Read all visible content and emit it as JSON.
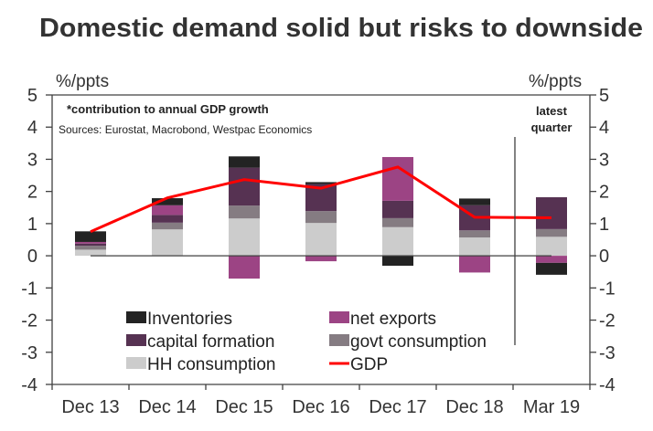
{
  "chart_data": {
    "type": "bar",
    "stacked": true,
    "title": "Domestic demand solid but risks to downside",
    "ylabel_left": "%/ppts",
    "ylabel_right": "%/ppts",
    "xlabel": "",
    "ylim": [
      -4,
      5
    ],
    "yticks": [
      5,
      4,
      3,
      2,
      1,
      0,
      -1,
      -2,
      -3,
      -4
    ],
    "ytick_labels": [
      "5",
      "4",
      "3",
      "2",
      "1",
      "0",
      "-1",
      "-2",
      "-3",
      "-4"
    ],
    "categories": [
      "Dec 13",
      "Dec 14",
      "Dec 15",
      "Dec 16",
      "Dec 17",
      "Dec 18",
      "Mar 19"
    ],
    "grid": false,
    "series": [
      {
        "name": "HH consumption",
        "type": "bar",
        "color": "#cccccc",
        "values": [
          0.19,
          0.82,
          1.16,
          1.02,
          0.89,
          0.57,
          0.59
        ]
      },
      {
        "name": "govt consumption",
        "type": "bar",
        "color": "#857c82",
        "values": [
          0.12,
          0.21,
          0.4,
          0.37,
          0.28,
          0.22,
          0.24
        ]
      },
      {
        "name": "capital formation",
        "type": "bar",
        "color": "#563252",
        "values": [
          0.07,
          0.24,
          1.18,
          0.84,
          0.54,
          0.78,
          0.99
        ]
      },
      {
        "name": "net exports",
        "type": "bar",
        "color": "#9c4484",
        "values": [
          0.05,
          0.3,
          -0.71,
          -0.17,
          1.36,
          -0.52,
          -0.22
        ]
      },
      {
        "name": "Inventories",
        "type": "bar",
        "color": "#232323",
        "values": [
          0.33,
          0.22,
          0.35,
          0.06,
          -0.31,
          0.21,
          -0.37
        ]
      },
      {
        "name": "GDP",
        "type": "line",
        "color": "#ff0000",
        "values": [
          0.75,
          1.8,
          2.37,
          2.1,
          2.76,
          1.2,
          1.18
        ]
      }
    ],
    "legend": {
      "position": "bottom-inside",
      "items": [
        {
          "label": "Inventories",
          "color": "#232323",
          "kind": "swatch"
        },
        {
          "label": "net exports",
          "color": "#9c4484",
          "kind": "swatch"
        },
        {
          "label": "capital formation",
          "color": "#563252",
          "kind": "swatch"
        },
        {
          "label": "govt consumption",
          "color": "#857c82",
          "kind": "swatch"
        },
        {
          "label": "HH consumption",
          "color": "#cccccc",
          "kind": "swatch"
        },
        {
          "label": "GDP",
          "color": "#ff0000",
          "kind": "line"
        }
      ]
    },
    "annotations": {
      "note": "*contribution to annual GDP growth",
      "sources": "Sources: Eurostat, Macrobond, Westpac Economics",
      "latest_quarter_line1": "latest",
      "latest_quarter_line2": "quarter"
    }
  }
}
